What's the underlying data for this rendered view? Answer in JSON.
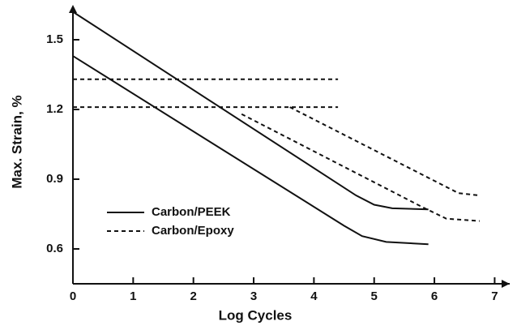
{
  "chart_data": {
    "type": "line",
    "x_label": "Log Cycles",
    "y_label": "Max. Strain, %",
    "xlim": [
      0,
      7.25
    ],
    "ylim": [
      0.45,
      1.65
    ],
    "xticks": [
      0,
      1,
      2,
      3,
      4,
      5,
      6,
      7
    ],
    "yticks": [
      0.6,
      0.9,
      1.2,
      1.5
    ],
    "legend": "lower-left",
    "series": [
      {
        "name": "Carbon/PEEK",
        "color": "#111111",
        "style": "solid",
        "x": [
          0,
          4.7,
          5.0,
          5.3,
          5.9
        ],
        "values": [
          1.62,
          0.83,
          0.79,
          0.775,
          0.77
        ]
      },
      {
        "name": "Carbon/PEEK",
        "color": "#111111",
        "style": "solid",
        "x": [
          0,
          4.5,
          4.8,
          5.2,
          5.9
        ],
        "values": [
          1.43,
          0.7,
          0.655,
          0.63,
          0.62
        ]
      },
      {
        "name": "Carbon/Epoxy",
        "color": "#111111",
        "style": "dashed",
        "x": [
          0,
          4.4
        ],
        "values": [
          1.33,
          1.33
        ]
      },
      {
        "name": "Carbon/Epoxy",
        "color": "#111111",
        "style": "dashed",
        "x": [
          0,
          4.4
        ],
        "values": [
          1.21,
          1.21
        ]
      },
      {
        "name": "Carbon/Epoxy",
        "color": "#111111",
        "style": "dashed",
        "x": [
          2.8,
          5.8,
          6.2,
          6.75
        ],
        "values": [
          1.18,
          0.78,
          0.73,
          0.72
        ]
      },
      {
        "name": "Carbon/Epoxy",
        "color": "#111111",
        "style": "dashed",
        "x": [
          3.6,
          6.4,
          6.75
        ],
        "values": [
          1.21,
          0.84,
          0.83
        ]
      }
    ]
  }
}
